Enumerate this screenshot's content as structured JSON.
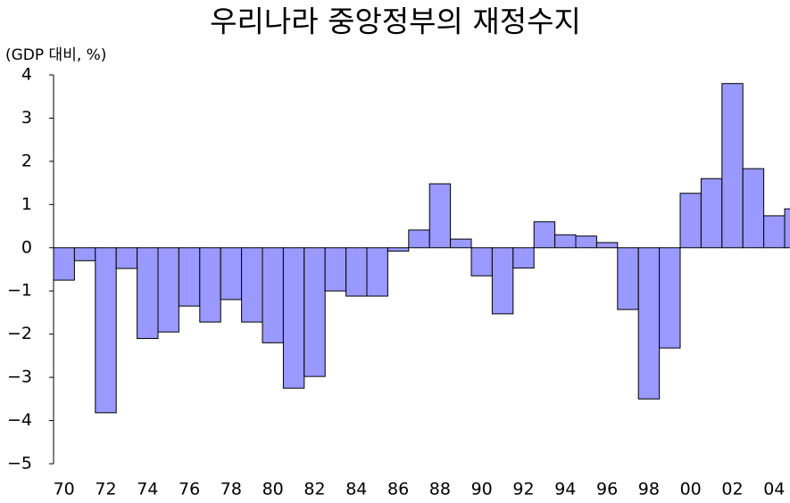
{
  "chart_data": {
    "type": "bar",
    "title": "우리나라 중앙정부의 재정수지",
    "y_label": "(GDP 대비, %)",
    "categories": [
      "70",
      null,
      "72",
      null,
      "74",
      null,
      "76",
      null,
      "78",
      null,
      "80",
      null,
      "82",
      null,
      "84",
      null,
      "86",
      null,
      "88",
      null,
      "90",
      null,
      "92",
      null,
      "94",
      null,
      "96",
      null,
      "98",
      null,
      "00",
      null,
      "02",
      null,
      "04",
      null
    ],
    "values": [
      -0.75,
      -0.3,
      -3.82,
      -0.48,
      -2.1,
      -1.95,
      -1.35,
      -1.72,
      -1.2,
      -1.72,
      -2.2,
      -3.25,
      -2.98,
      -1.0,
      -1.12,
      -1.12,
      -0.08,
      0.41,
      1.48,
      0.2,
      -0.65,
      -1.53,
      -0.47,
      0.6,
      0.3,
      0.27,
      0.12,
      -1.43,
      -3.5,
      -2.32,
      1.26,
      1.6,
      3.8,
      1.83,
      0.74,
      0.9
    ],
    "color": "#9999ff",
    "ylim": [
      -5,
      4
    ],
    "yticks": [
      {
        "value": -5,
        "label": "−5"
      },
      {
        "value": -4,
        "label": "−4"
      },
      {
        "value": -3,
        "label": "−3"
      },
      {
        "value": -2,
        "label": "−2"
      },
      {
        "value": -1,
        "label": "−1"
      },
      0,
      1,
      2,
      3,
      4
    ]
  }
}
